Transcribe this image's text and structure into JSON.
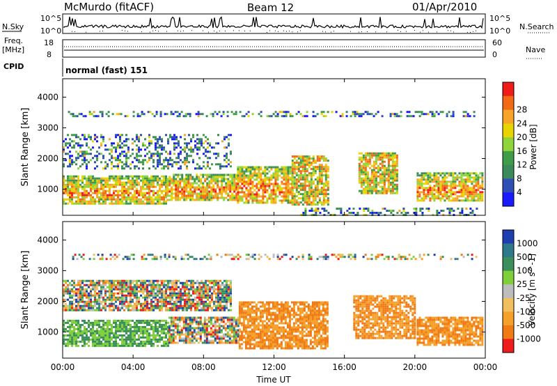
{
  "header": {
    "station": "McMurdo (fitACF)",
    "beam": "Beam 12",
    "date": "01/Apr/2010"
  },
  "panels": {
    "nsky_label": "N.Sky",
    "nsky_top": "10^5",
    "nsky_bottom": "10^0",
    "nsearch_label": "N.Search",
    "nsearch_top": "10^5",
    "nsearch_bottom": "10^0",
    "freq_label_1": "Freq.",
    "freq_label_2": "[MHz]",
    "freq_top": "18",
    "freq_bottom": "8",
    "nave_label": "Nave",
    "nave_top": "60",
    "nave_bottom": "0",
    "cpid_label": "CPID",
    "cpid_value": "normal (fast) 151"
  },
  "chart_data": [
    {
      "type": "heatmap",
      "name": "power",
      "ylabel": "Slant Range [km]",
      "ylim": [
        150,
        4600
      ],
      "yticks": [
        1000,
        2000,
        3000,
        4000
      ],
      "xticks": [
        "00:00",
        "04:00",
        "08:00",
        "12:00",
        "16:00",
        "20:00",
        "00:00"
      ],
      "xlim": [
        0,
        24
      ],
      "colorbar": {
        "label": "Power [dB]",
        "ticks": [
          "4",
          "8",
          "12",
          "16",
          "20",
          "24",
          "28"
        ],
        "colors": [
          "#1a1aff",
          "#2f4fb5",
          "#3c8a5a",
          "#3f9d4a",
          "#8fd43a",
          "#e8d400",
          "#f7a428",
          "#f26a16",
          "#ef1c1c"
        ]
      },
      "regions": [
        {
          "x0": 0.0,
          "x1": 5.9,
          "r0": 550,
          "r1": 1450,
          "level": "strong"
        },
        {
          "x0": 5.9,
          "x1": 9.9,
          "r0": 650,
          "r1": 1500,
          "level": "strong"
        },
        {
          "x0": 9.9,
          "x1": 13.0,
          "r0": 550,
          "r1": 1750,
          "level": "strong"
        },
        {
          "x0": 13.0,
          "x1": 15.1,
          "r0": 500,
          "r1": 2100,
          "level": "medium"
        },
        {
          "x0": 16.8,
          "x1": 19.0,
          "r0": 900,
          "r1": 2200,
          "level": "medium"
        },
        {
          "x0": 20.1,
          "x1": 23.8,
          "r0": 600,
          "r1": 1550,
          "level": "strong"
        },
        {
          "x0": 0.0,
          "x1": 9.5,
          "r0": 1700,
          "r1": 2800,
          "level": "weak"
        },
        {
          "x0": 0.3,
          "x1": 23.5,
          "r0": 3400,
          "r1": 3550,
          "level": "weak"
        },
        {
          "x0": 13.5,
          "x1": 23.5,
          "r0": 150,
          "r1": 400,
          "level": "weak"
        }
      ]
    },
    {
      "type": "heatmap",
      "name": "velocity",
      "ylabel": "Slant Range [km]",
      "xlabel": "Time UT",
      "ylim": [
        150,
        4600
      ],
      "yticks": [
        1000,
        2000,
        3000,
        4000
      ],
      "xticks": [
        "00:00",
        "04:00",
        "08:00",
        "12:00",
        "16:00",
        "20:00",
        "00:00"
      ],
      "xlim": [
        0,
        24
      ],
      "colorbar": {
        "label": "Velocity [m s^-1]",
        "ticks": [
          "1000",
          "500",
          "100",
          "25",
          "-25",
          "-100",
          "-500",
          "-1000"
        ],
        "colors": [
          "#1f3fb0",
          "#2f7a8a",
          "#3a8f5a",
          "#7fcf3a",
          "#bdbdbd",
          "#f0c060",
          "#f5a02a",
          "#f07a14",
          "#ee1c1c"
        ]
      },
      "regions": [
        {
          "x0": 0.0,
          "x1": 6.0,
          "r0": 550,
          "r1": 1400,
          "level": "positive"
        },
        {
          "x0": 6.0,
          "x1": 10.0,
          "r0": 650,
          "r1": 1500,
          "level": "mixed"
        },
        {
          "x0": 10.0,
          "x1": 15.1,
          "r0": 500,
          "r1": 2000,
          "level": "negative"
        },
        {
          "x0": 16.5,
          "x1": 20.0,
          "r0": 800,
          "r1": 2200,
          "level": "negative"
        },
        {
          "x0": 20.1,
          "x1": 23.8,
          "r0": 600,
          "r1": 1500,
          "level": "negative"
        },
        {
          "x0": 0.0,
          "x1": 9.5,
          "r0": 1700,
          "r1": 2700,
          "level": "mixed"
        },
        {
          "x0": 0.3,
          "x1": 23.5,
          "r0": 3400,
          "r1": 3550,
          "level": "mixed"
        }
      ]
    }
  ]
}
